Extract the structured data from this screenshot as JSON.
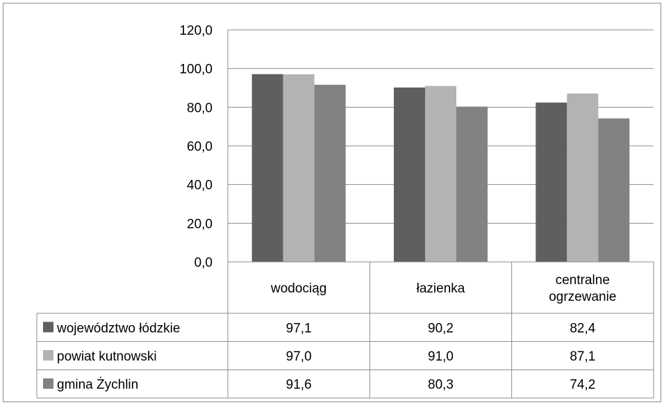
{
  "chart_data": {
    "type": "bar",
    "title": "",
    "xlabel": "",
    "ylabel": "",
    "ylim": [
      0,
      120
    ],
    "yticks": [
      "0,0",
      "20,0",
      "40,0",
      "60,0",
      "80,0",
      "100,0",
      "120,0"
    ],
    "grid": true,
    "legend": "data-table-left",
    "categories": [
      [
        "wodociąg"
      ],
      [
        "łazienka"
      ],
      [
        "centralne",
        "ogrzewanie"
      ]
    ],
    "series": [
      {
        "name": "województwo łódzkie",
        "color": "#5f5f5f",
        "values": [
          97.1,
          90.2,
          82.4
        ],
        "labels": [
          "97,1",
          "90,2",
          "82,4"
        ]
      },
      {
        "name": "powiat kutnowski",
        "color": "#b3b3b3",
        "values": [
          97.0,
          91.0,
          87.1
        ],
        "labels": [
          "97,0",
          "91,0",
          "87,1"
        ]
      },
      {
        "name": "gmina Żychlin",
        "color": "#828282",
        "values": [
          91.6,
          80.3,
          74.2
        ],
        "labels": [
          "91,6",
          "80,3",
          "74,2"
        ]
      }
    ]
  }
}
